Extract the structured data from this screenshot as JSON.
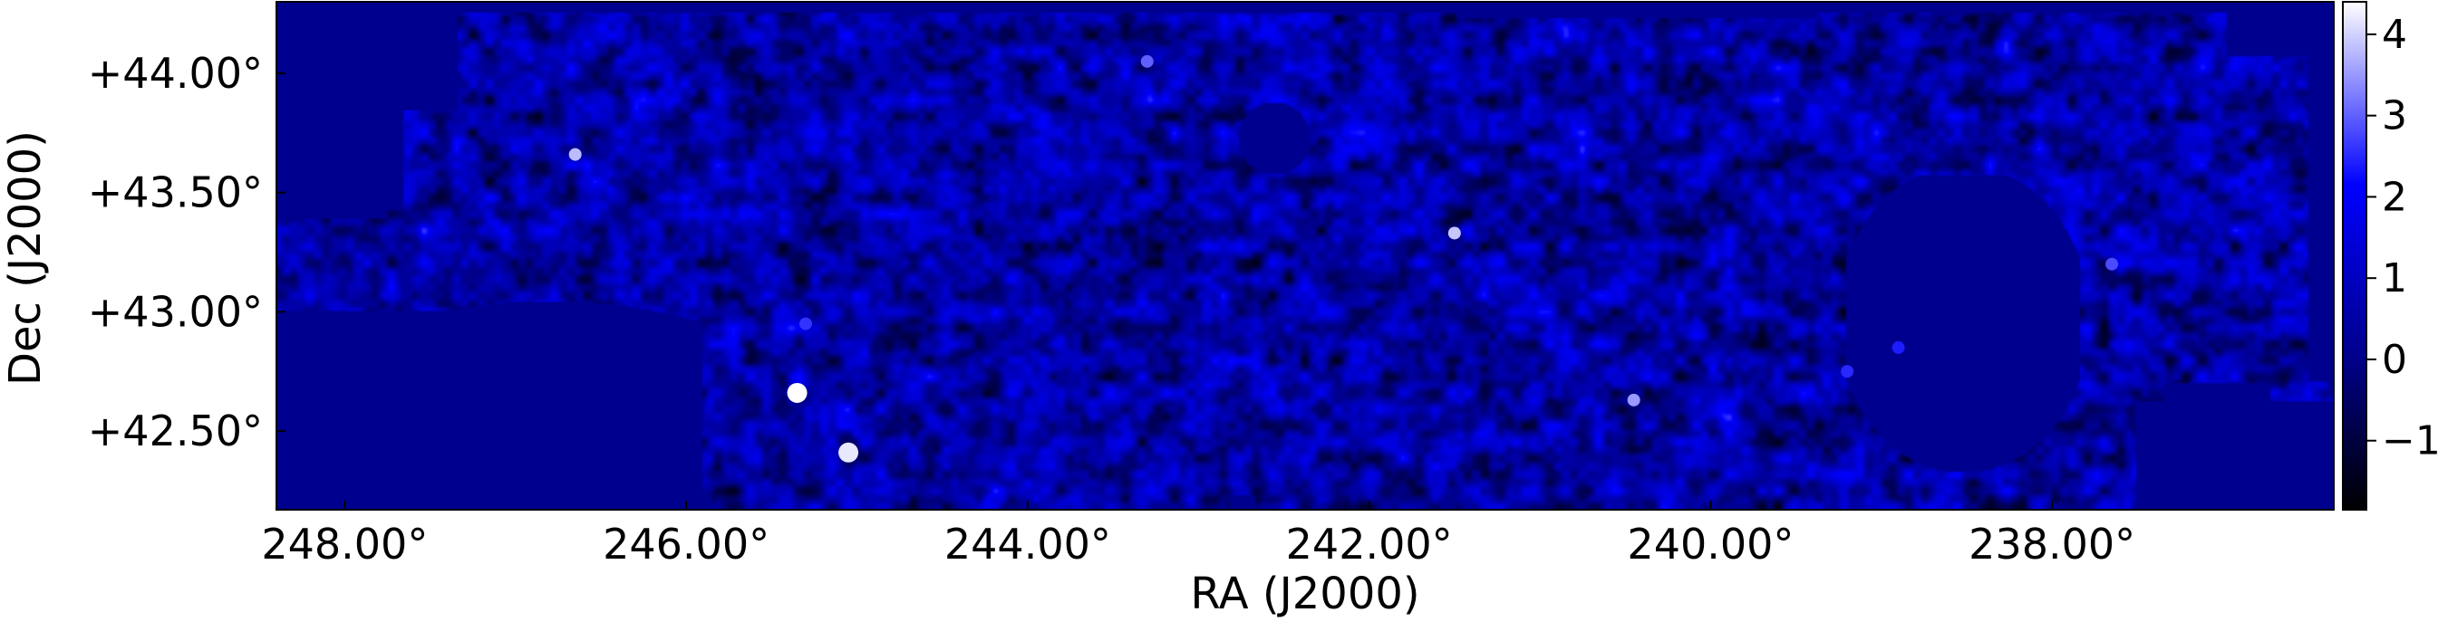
{
  "chart_data": {
    "type": "heatmap",
    "title": "",
    "xlabel": "RA (J2000)",
    "ylabel": "Dec (J2000)",
    "x_axis": {
      "direction": "decreasing-left-to-right",
      "range": [
        248.4,
        236.35
      ],
      "ticks": [
        248.0,
        246.0,
        244.0,
        242.0,
        240.0,
        238.0
      ],
      "tick_labels": [
        "248.00°",
        "246.00°",
        "244.00°",
        "242.00°",
        "240.00°",
        "238.00°"
      ]
    },
    "y_axis": {
      "range": [
        42.17,
        44.3
      ],
      "ticks": [
        42.5,
        43.0,
        43.5,
        44.0
      ],
      "tick_labels": [
        "+42.50°",
        "+43.00°",
        "+43.50°",
        "+44.00°"
      ]
    },
    "colorbar": {
      "range": [
        -1.85,
        4.4
      ],
      "ticks": [
        -1,
        0,
        1,
        2,
        3,
        4
      ],
      "tick_labels": [
        "−1",
        "0",
        "1",
        "2",
        "3",
        "4"
      ],
      "colormap": [
        "#000000",
        "#00008b",
        "#0000ff",
        "#ffffff"
      ]
    },
    "background_value": 0.1,
    "grid": false,
    "bright_sources": [
      {
        "ra": 245.35,
        "dec": 42.66,
        "value": 4.4
      },
      {
        "ra": 245.05,
        "dec": 42.41,
        "value": 4.2
      },
      {
        "ra": 246.65,
        "dec": 43.66,
        "value": 3.8
      },
      {
        "ra": 241.5,
        "dec": 43.33,
        "value": 3.9
      },
      {
        "ra": 240.45,
        "dec": 42.63,
        "value": 3.5
      },
      {
        "ra": 243.3,
        "dec": 44.05,
        "value": 3.0
      },
      {
        "ra": 245.3,
        "dec": 42.95,
        "value": 2.6
      },
      {
        "ra": 239.2,
        "dec": 42.75,
        "value": 2.5
      },
      {
        "ra": 238.9,
        "dec": 42.85,
        "value": 2.4
      },
      {
        "ra": 237.65,
        "dec": 43.2,
        "value": 2.8
      }
    ]
  }
}
